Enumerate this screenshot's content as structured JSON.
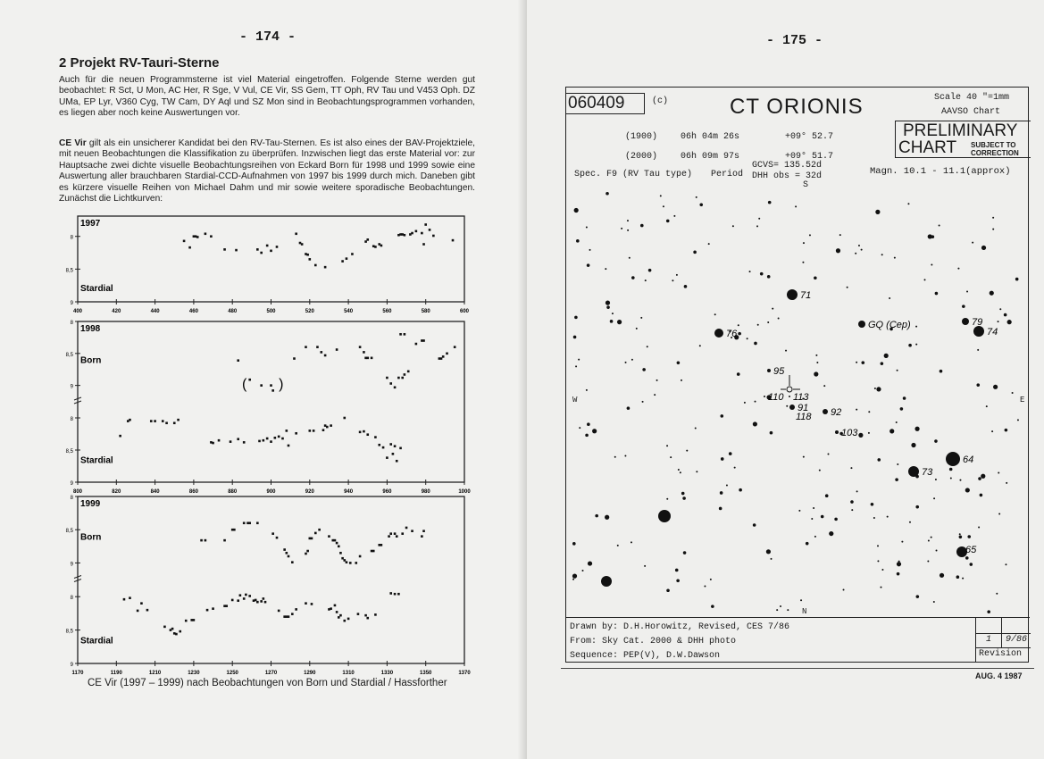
{
  "left_page": {
    "page_number": "- 174 -",
    "heading": "2  Projekt RV-Tauri-Sterne",
    "paragraph1": "Auch für die neuen Programmsterne ist viel Material eingetroffen. Folgende Sterne werden gut beobachtet: R Sct, U Mon, AC Her, R Sge, V Vul, CE Vir, SS Gem, TT Oph, RV Tau und V453 Oph. DZ UMa, EP Lyr, V360 Cyg, TW Cam, DY Aql und SZ Mon sind in Beobachtungsprogrammen vorhanden, es liegen aber noch keine Auswertungen vor.",
    "paragraph2_lead": "CE Vir",
    "paragraph2": " gilt als ein unsicherer Kandidat bei den RV-Tau-Sternen. Es ist also eines der BAV-Projektziele, mit neuen Beobachtungen die Klassifikation zu überprüfen. Inzwischen liegt das erste Material vor: zur Hauptsache zwei dichte visuelle Beobachtungsreihen von Eckard Born für 1998 und 1999 sowie eine Auswertung aller brauchbaren Stardial-CCD-Aufnahmen von 1997 bis 1999 durch mich. Daneben gibt es kürzere visuelle Reihen von Michael Dahm und mir sowie weitere sporadische Beobachtungen. Zunächst die Lichtkurven:",
    "caption": "CE Vir (1997 – 1999) nach Beobachtungen von Born und Stardial / Hassforther"
  },
  "chart_data": [
    {
      "type": "scatter",
      "title": "1997",
      "xlim": [
        400,
        600
      ],
      "xticks": [
        400,
        420,
        440,
        460,
        480,
        500,
        520,
        540,
        560,
        580,
        600
      ],
      "ylim": [
        7.69,
        9.0
      ],
      "y_inverted": true,
      "yticks": [
        "8",
        "8,5",
        "9"
      ],
      "grid": false,
      "series": [
        {
          "name": "Stardial",
          "points": [
            [
              455,
              8.07
            ],
            [
              458,
              8.17
            ],
            [
              460,
              8.0
            ],
            [
              461,
              8.0
            ],
            [
              462,
              8.01
            ],
            [
              466,
              7.96
            ],
            [
              469,
              8.0
            ],
            [
              476,
              8.2
            ],
            [
              482,
              8.21
            ],
            [
              493,
              8.2
            ],
            [
              495,
              8.25
            ],
            [
              498,
              8.14
            ],
            [
              500,
              8.22
            ],
            [
              503,
              8.16
            ],
            [
              513,
              7.96
            ],
            [
              515,
              8.1
            ],
            [
              516,
              8.12
            ],
            [
              518,
              8.27
            ],
            [
              519,
              8.28
            ],
            [
              520,
              8.35
            ],
            [
              523,
              8.44
            ],
            [
              528,
              8.47
            ],
            [
              537,
              8.38
            ],
            [
              539,
              8.34
            ],
            [
              542,
              8.27
            ],
            [
              549,
              8.08
            ],
            [
              550,
              8.05
            ],
            [
              553,
              8.15
            ],
            [
              554,
              8.16
            ],
            [
              556,
              8.12
            ],
            [
              557,
              8.14
            ],
            [
              566,
              7.98
            ],
            [
              567,
              7.97
            ],
            [
              568,
              7.97
            ],
            [
              569,
              7.98
            ],
            [
              572,
              7.97
            ],
            [
              573,
              7.95
            ],
            [
              575,
              7.92
            ],
            [
              578,
              7.95
            ],
            [
              579,
              8.12
            ],
            [
              580,
              7.82
            ],
            [
              582,
              7.9
            ],
            [
              584,
              7.99
            ],
            [
              594,
              8.06
            ]
          ]
        }
      ]
    },
    {
      "type": "scatter",
      "title": "1998",
      "xlim": [
        800,
        1000
      ],
      "xticks": [
        800,
        820,
        840,
        860,
        880,
        900,
        920,
        940,
        960,
        980,
        1000
      ],
      "y_inverted": true,
      "broken_y_axis": true,
      "yticks": [
        "8",
        "8,5",
        "9"
      ],
      "grid": false,
      "series": [
        {
          "name": "Born",
          "points": [
            [
              883,
              8.61
            ],
            [
              912,
              8.58
            ],
            [
              918,
              8.4
            ],
            [
              924,
              8.4
            ],
            [
              926,
              8.48
            ],
            [
              928,
              8.53
            ],
            [
              934,
              8.44
            ],
            [
              946,
              8.4
            ],
            [
              948,
              8.48
            ],
            [
              949,
              8.57
            ],
            [
              950,
              8.57
            ],
            [
              952,
              8.57
            ],
            [
              960,
              8.88
            ],
            [
              962,
              8.97
            ],
            [
              964,
              9.03
            ],
            [
              966,
              8.88
            ],
            [
              968,
              8.88
            ],
            [
              969,
              8.83
            ],
            [
              971,
              8.78
            ],
            [
              975,
              8.35
            ],
            [
              978,
              8.3
            ],
            [
              979,
              8.3
            ],
            [
              967,
              8.2
            ],
            [
              969,
              8.2
            ],
            [
              987,
              8.58
            ],
            [
              988,
              8.58
            ],
            [
              989,
              8.55
            ],
            [
              991,
              8.5
            ],
            [
              995,
              8.4
            ]
          ],
          "bracketed": [
            [
              889,
              8.91
            ],
            [
              895,
              9.0
            ],
            [
              900,
              9.0
            ],
            [
              901,
              9.08
            ]
          ]
        },
        {
          "name": "Stardial",
          "points": [
            [
              822,
              8.28
            ],
            [
              826,
              8.05
            ],
            [
              827,
              8.03
            ],
            [
              838,
              8.05
            ],
            [
              840,
              8.05
            ],
            [
              844,
              8.05
            ],
            [
              846,
              8.08
            ],
            [
              850,
              8.08
            ],
            [
              852,
              8.03
            ],
            [
              869,
              8.38
            ],
            [
              870,
              8.39
            ],
            [
              873,
              8.35
            ],
            [
              879,
              8.37
            ],
            [
              883,
              8.33
            ],
            [
              886,
              8.38
            ],
            [
              894,
              8.36
            ],
            [
              896,
              8.35
            ],
            [
              898,
              8.32
            ],
            [
              900,
              8.37
            ],
            [
              902,
              8.31
            ],
            [
              904,
              8.29
            ],
            [
              906,
              8.32
            ],
            [
              908,
              8.2
            ],
            [
              909,
              8.43
            ],
            [
              913,
              8.24
            ],
            [
              920,
              8.2
            ],
            [
              922,
              8.2
            ],
            [
              927,
              8.19
            ],
            [
              928,
              8.12
            ],
            [
              929,
              8.14
            ],
            [
              931,
              8.12
            ],
            [
              938,
              8.0
            ],
            [
              946,
              8.22
            ],
            [
              948,
              8.21
            ],
            [
              950,
              8.26
            ],
            [
              954,
              8.3
            ],
            [
              956,
              8.42
            ],
            [
              958,
              8.46
            ],
            [
              960,
              8.62
            ],
            [
              962,
              8.41
            ],
            [
              963,
              8.56
            ],
            [
              964,
              8.44
            ],
            [
              965,
              8.67
            ],
            [
              967,
              8.47
            ]
          ]
        }
      ]
    },
    {
      "type": "scatter",
      "title": "1999",
      "xlim": [
        1170,
        1370
      ],
      "xticks": [
        1170,
        1190,
        1210,
        1230,
        1250,
        1270,
        1290,
        1310,
        1330,
        1350,
        1370
      ],
      "y_inverted": true,
      "broken_y_axis": true,
      "yticks": [
        "8",
        "8,5",
        "9"
      ],
      "grid": false,
      "series": [
        {
          "name": "Born",
          "points": [
            [
              1234,
              8.66
            ],
            [
              1236,
              8.66
            ],
            [
              1246,
              8.66
            ],
            [
              1250,
              8.5
            ],
            [
              1251,
              8.5
            ],
            [
              1256,
              8.4
            ],
            [
              1258,
              8.4
            ],
            [
              1259,
              8.4
            ],
            [
              1263,
              8.4
            ],
            [
              1271,
              8.56
            ],
            [
              1273,
              8.62
            ],
            [
              1277,
              8.8
            ],
            [
              1278,
              8.85
            ],
            [
              1279,
              8.9
            ],
            [
              1281,
              8.99
            ],
            [
              1288,
              8.86
            ],
            [
              1289,
              8.82
            ],
            [
              1290,
              8.63
            ],
            [
              1291,
              8.63
            ],
            [
              1293,
              8.55
            ],
            [
              1295,
              8.5
            ],
            [
              1300,
              8.6
            ],
            [
              1302,
              8.66
            ],
            [
              1303,
              8.66
            ],
            [
              1304,
              8.7
            ],
            [
              1305,
              8.75
            ],
            [
              1306,
              8.85
            ],
            [
              1307,
              8.93
            ],
            [
              1308,
              8.96
            ],
            [
              1309,
              8.99
            ],
            [
              1311,
              9.0
            ],
            [
              1314,
              9.0
            ],
            [
              1316,
              8.9
            ],
            [
              1322,
              8.82
            ],
            [
              1323,
              8.82
            ],
            [
              1326,
              8.73
            ],
            [
              1327,
              8.73
            ],
            [
              1331,
              8.6
            ],
            [
              1332,
              8.56
            ],
            [
              1334,
              8.56
            ],
            [
              1335,
              8.6
            ],
            [
              1338,
              8.56
            ],
            [
              1340,
              8.47
            ],
            [
              1343,
              8.52
            ],
            [
              1348,
              8.6
            ],
            [
              1349,
              8.52
            ]
          ]
        },
        {
          "name": "Stardial",
          "points": [
            [
              1194,
              8.04
            ],
            [
              1197,
              8.02
            ],
            [
              1201,
              8.21
            ],
            [
              1203,
              8.1
            ],
            [
              1206,
              8.2
            ],
            [
              1215,
              8.45
            ],
            [
              1218,
              8.5
            ],
            [
              1219,
              8.48
            ],
            [
              1220,
              8.55
            ],
            [
              1221,
              8.56
            ],
            [
              1223,
              8.52
            ],
            [
              1226,
              8.36
            ],
            [
              1229,
              8.35
            ],
            [
              1230,
              8.35
            ],
            [
              1237,
              8.2
            ],
            [
              1240,
              8.18
            ],
            [
              1246,
              8.14
            ],
            [
              1247,
              8.14
            ],
            [
              1250,
              8.05
            ],
            [
              1253,
              8.06
            ],
            [
              1254,
              7.98
            ],
            [
              1256,
              8.03
            ],
            [
              1257,
              7.97
            ],
            [
              1259,
              7.99
            ],
            [
              1261,
              8.06
            ],
            [
              1262,
              8.05
            ],
            [
              1263,
              8.08
            ],
            [
              1265,
              8.07
            ],
            [
              1266,
              8.03
            ],
            [
              1267,
              8.08
            ],
            [
              1274,
              8.21
            ],
            [
              1277,
              8.3
            ],
            [
              1278,
              8.3
            ],
            [
              1279,
              8.3
            ],
            [
              1281,
              8.26
            ],
            [
              1283,
              8.19
            ],
            [
              1288,
              8.1
            ],
            [
              1291,
              8.11
            ],
            [
              1300,
              8.19
            ],
            [
              1301,
              8.18
            ],
            [
              1303,
              8.13
            ],
            [
              1304,
              8.23
            ],
            [
              1305,
              8.31
            ],
            [
              1306,
              8.28
            ],
            [
              1308,
              8.36
            ],
            [
              1310,
              8.33
            ],
            [
              1315,
              8.26
            ],
            [
              1319,
              8.28
            ],
            [
              1320,
              8.32
            ],
            [
              1324,
              8.27
            ],
            [
              1332,
              7.95
            ],
            [
              1334,
              7.96
            ],
            [
              1336,
              7.96
            ]
          ]
        }
      ]
    }
  ],
  "right_page": {
    "page_number": "- 175 -",
    "chart": {
      "number": "060409",
      "copyright": "(c)",
      "star_name": "CT ORIONIS",
      "scale": "Scale 40 \"=1mm",
      "chart_type": "AAVSO Chart",
      "preliminary": "PRELIMINARY",
      "chart_word": "CHART",
      "subject_to": "SUBJECT TO",
      "correction": "CORRECTION",
      "epoch1900": "(1900)",
      "ra1900": "06h 04m 26s",
      "dec1900": "+09° 52.7",
      "epoch2000": "(2000)",
      "ra2000": "06h 09m 97s",
      "dec2000": "+09° 51.7",
      "spec": "Spec.   F9 (RV Tau type)",
      "period_label": "Period",
      "gcvs": "GCVS= 135.52d",
      "dhh_obs": "DHH obs = 32d",
      "s_mark": "S",
      "magn": "Magn. 10.1 - 11.1(approx)",
      "west": "W",
      "east": "E",
      "north": "N",
      "comparison_labels": [
        "71",
        "76",
        "GQ (Cep)",
        "79",
        "74",
        "95",
        "110",
        "113",
        "91",
        "118",
        "92",
        "103",
        "73",
        "64",
        "65"
      ],
      "drawn_by": "Drawn by:  D.H.Horowitz, Revised, CES 7/86",
      "from": "From: Sky Cat. 2000 & DHH photo",
      "sequence": "Sequence: PEP(V), D.W.Dawson",
      "revision_no": "1",
      "revision_date": "9/86",
      "revision_label": "Revision"
    },
    "stamp": "AUG.  4 1987"
  }
}
